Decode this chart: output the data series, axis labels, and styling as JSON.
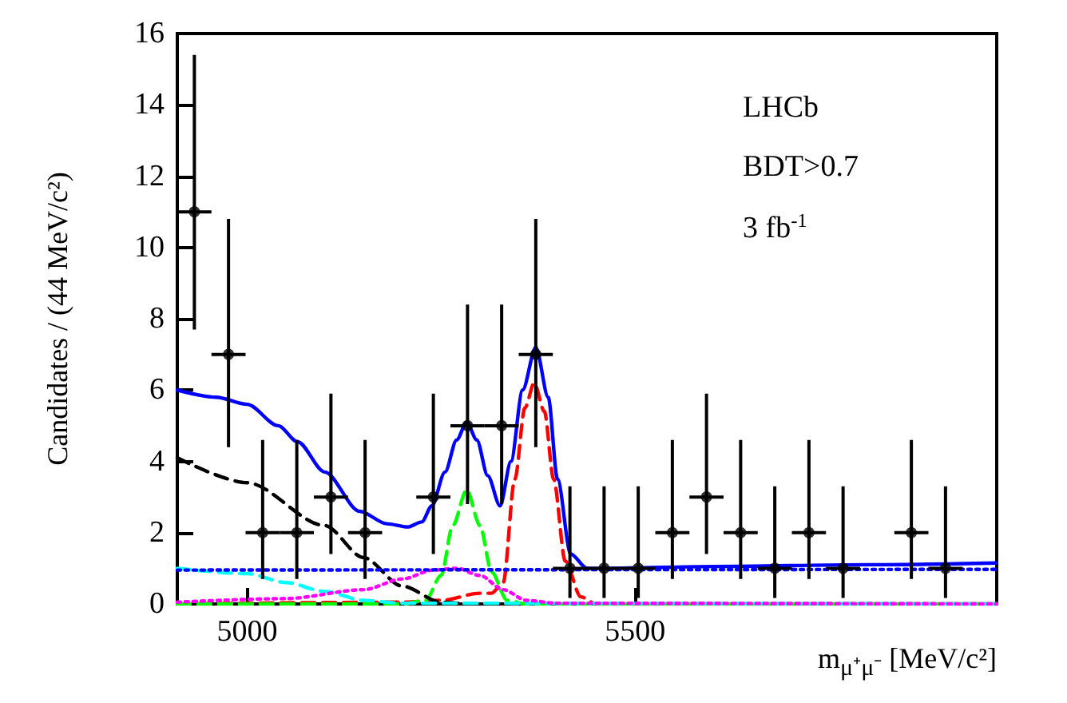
{
  "chart_data": {
    "type": "line",
    "xlabel": "m$_{μ⁺μ⁻}$ [MeV/c²]",
    "ylabel": "Candidates / (44 MeV/c²)",
    "xlim": [
      4910,
      5966
    ],
    "xticks": [
      5000,
      5500
    ],
    "ylim": [
      0,
      16
    ],
    "yticks": [
      0,
      2,
      4,
      6,
      8,
      10,
      12,
      14,
      16
    ],
    "grid": false,
    "annotations": [
      "LHCb",
      "BDT>0.7",
      "3 fb$^{-1}$"
    ],
    "series": [
      {
        "type": "line",
        "color": "#0000ff",
        "line_style": "solid",
        "marker": "none",
        "x": [
          4910,
          4960,
          5000,
          5040,
          5065,
          5100,
          5145,
          5180,
          5207,
          5225,
          5238,
          5255,
          5270,
          5283,
          5296,
          5310,
          5326,
          5340,
          5355,
          5372,
          5388,
          5400,
          5417,
          5438,
          5460,
          5600,
          5800,
          5966
        ],
        "values": [
          6.0,
          5.8,
          5.6,
          5.0,
          4.55,
          3.7,
          2.6,
          2.25,
          2.16,
          2.3,
          2.75,
          3.7,
          4.6,
          5.1,
          4.6,
          3.6,
          2.75,
          4.0,
          6.0,
          7.2,
          5.8,
          3.5,
          1.4,
          1.0,
          1.0,
          1.05,
          1.1,
          1.15
        ]
      },
      {
        "type": "line",
        "color": "#ff0000",
        "line_style": "dashed",
        "marker": "none",
        "x": [
          4910,
          5200,
          5250,
          5300,
          5315,
          5330,
          5345,
          5358,
          5370,
          5383,
          5395,
          5410,
          5430,
          5450,
          5966
        ],
        "values": [
          0,
          0.05,
          0.1,
          0.3,
          0.3,
          0.6,
          3.5,
          5.5,
          6.2,
          5.4,
          3.5,
          1.2,
          0.2,
          0,
          0
        ]
      },
      {
        "type": "line",
        "color": "#00ff00",
        "line_style": "dashed",
        "marker": "none",
        "x": [
          4910,
          5200,
          5230,
          5250,
          5265,
          5283,
          5300,
          5315,
          5335,
          5360,
          5966
        ],
        "values": [
          0,
          0,
          0.1,
          0.8,
          2.2,
          3.2,
          2.2,
          0.9,
          0.1,
          0,
          0
        ]
      },
      {
        "type": "line",
        "color": "#000000",
        "line_style": "dashed",
        "marker": "none",
        "x": [
          4910,
          5000,
          5100,
          5150,
          5200,
          5250,
          5280
        ],
        "values": [
          4.1,
          3.4,
          2.2,
          1.3,
          0.5,
          0.05,
          0
        ]
      },
      {
        "type": "line",
        "color": "#00ffff",
        "line_style": "dashed",
        "marker": "none",
        "x": [
          4910,
          5000,
          5050,
          5100,
          5150,
          5200,
          5966
        ],
        "values": [
          1.0,
          0.85,
          0.6,
          0.35,
          0.1,
          0.02,
          0
        ]
      },
      {
        "type": "line",
        "color": "#ff00ff",
        "line_style": "dotted",
        "marker": "none",
        "x": [
          4910,
          5050,
          5150,
          5200,
          5240,
          5270,
          5300,
          5330,
          5360,
          5400,
          5966
        ],
        "values": [
          0.05,
          0.15,
          0.4,
          0.7,
          0.95,
          1.0,
          0.8,
          0.4,
          0.1,
          0.02,
          0
        ]
      },
      {
        "type": "line",
        "color": "#0000ff",
        "line_style": "dotted",
        "marker": "none",
        "x": [
          4910,
          5966
        ],
        "values": [
          0.95,
          0.97
        ]
      },
      {
        "type": "scatter",
        "color": "#000000",
        "marker": "circle",
        "x": [
          4932,
          4976,
          5020,
          5064,
          5108,
          5152,
          5240,
          5284,
          5328,
          5372,
          5416,
          5460,
          5504,
          5548,
          5592,
          5636,
          5680,
          5724,
          5768,
          5856,
          5900
        ],
        "values": [
          11,
          7,
          2,
          2,
          3,
          2,
          3,
          5,
          5,
          7,
          1,
          1,
          1,
          2,
          3,
          2,
          1,
          2,
          1,
          2,
          1
        ],
        "errors": [
          [
            7.7,
            15.4
          ],
          [
            4.4,
            10.8
          ],
          [
            0.7,
            4.6
          ],
          [
            0.7,
            4.6
          ],
          [
            1.4,
            5.9
          ],
          [
            0.7,
            4.6
          ],
          [
            1.4,
            5.9
          ],
          [
            2.8,
            8.4
          ],
          [
            2.8,
            8.4
          ],
          [
            4.4,
            10.8
          ],
          [
            0.17,
            3.3
          ],
          [
            0.17,
            3.3
          ],
          [
            0.17,
            3.3
          ],
          [
            0.7,
            4.6
          ],
          [
            1.4,
            5.9
          ],
          [
            0.7,
            4.6
          ],
          [
            0.17,
            3.3
          ],
          [
            0.7,
            4.6
          ],
          [
            0.17,
            3.3
          ],
          [
            0.7,
            4.6
          ],
          [
            0.17,
            3.3
          ]
        ],
        "xerrors": [
          22,
          22,
          22,
          22,
          22,
          22,
          22,
          22,
          22,
          22,
          22,
          22,
          22,
          22,
          22,
          22,
          22,
          22,
          22,
          22,
          22
        ]
      }
    ]
  }
}
